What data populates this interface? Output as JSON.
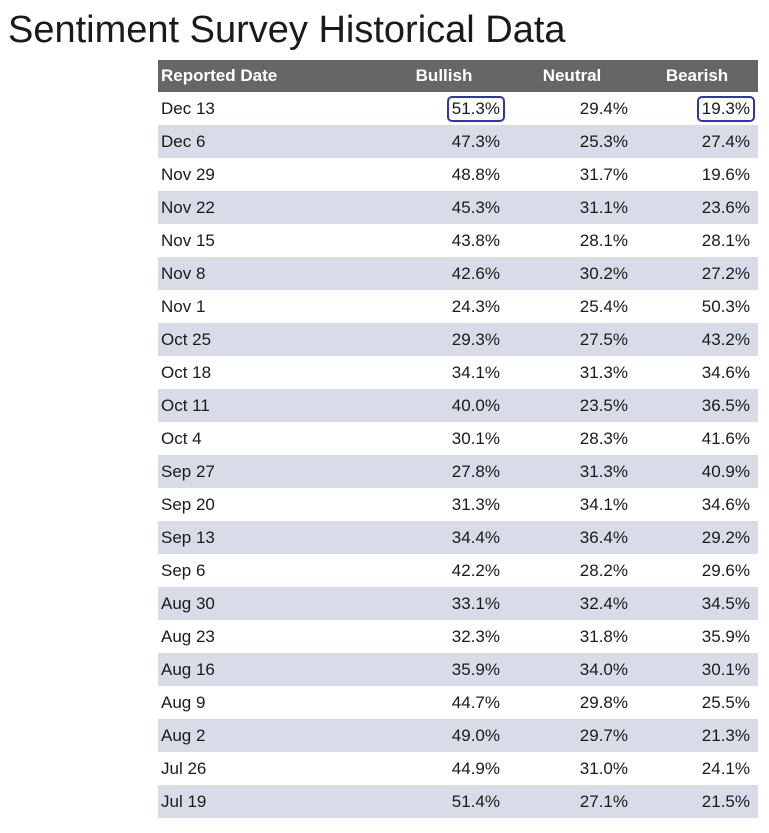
{
  "page": {
    "title": "Sentiment Survey Historical Data"
  },
  "table": {
    "headers": {
      "date": "Reported Date",
      "bullish": "Bullish",
      "neutral": "Neutral",
      "bearish": "Bearish"
    },
    "highlight_color": "#2b35b5",
    "rows": [
      {
        "date": "Dec 13",
        "bullish": "51.3%",
        "neutral": "29.4%",
        "bearish": "19.3%",
        "highlight": [
          "bullish",
          "bearish"
        ]
      },
      {
        "date": "Dec 6",
        "bullish": "47.3%",
        "neutral": "25.3%",
        "bearish": "27.4%"
      },
      {
        "date": "Nov 29",
        "bullish": "48.8%",
        "neutral": "31.7%",
        "bearish": "19.6%"
      },
      {
        "date": "Nov 22",
        "bullish": "45.3%",
        "neutral": "31.1%",
        "bearish": "23.6%"
      },
      {
        "date": "Nov 15",
        "bullish": "43.8%",
        "neutral": "28.1%",
        "bearish": "28.1%"
      },
      {
        "date": "Nov 8",
        "bullish": "42.6%",
        "neutral": "30.2%",
        "bearish": "27.2%"
      },
      {
        "date": "Nov 1",
        "bullish": "24.3%",
        "neutral": "25.4%",
        "bearish": "50.3%"
      },
      {
        "date": "Oct 25",
        "bullish": "29.3%",
        "neutral": "27.5%",
        "bearish": "43.2%"
      },
      {
        "date": "Oct 18",
        "bullish": "34.1%",
        "neutral": "31.3%",
        "bearish": "34.6%"
      },
      {
        "date": "Oct 11",
        "bullish": "40.0%",
        "neutral": "23.5%",
        "bearish": "36.5%"
      },
      {
        "date": "Oct 4",
        "bullish": "30.1%",
        "neutral": "28.3%",
        "bearish": "41.6%"
      },
      {
        "date": "Sep 27",
        "bullish": "27.8%",
        "neutral": "31.3%",
        "bearish": "40.9%"
      },
      {
        "date": "Sep 20",
        "bullish": "31.3%",
        "neutral": "34.1%",
        "bearish": "34.6%"
      },
      {
        "date": "Sep 13",
        "bullish": "34.4%",
        "neutral": "36.4%",
        "bearish": "29.2%"
      },
      {
        "date": "Sep 6",
        "bullish": "42.2%",
        "neutral": "28.2%",
        "bearish": "29.6%"
      },
      {
        "date": "Aug 30",
        "bullish": "33.1%",
        "neutral": "32.4%",
        "bearish": "34.5%"
      },
      {
        "date": "Aug 23",
        "bullish": "32.3%",
        "neutral": "31.8%",
        "bearish": "35.9%"
      },
      {
        "date": "Aug 16",
        "bullish": "35.9%",
        "neutral": "34.0%",
        "bearish": "30.1%"
      },
      {
        "date": "Aug 9",
        "bullish": "44.7%",
        "neutral": "29.8%",
        "bearish": "25.5%"
      },
      {
        "date": "Aug 2",
        "bullish": "49.0%",
        "neutral": "29.7%",
        "bearish": "21.3%"
      },
      {
        "date": "Jul 26",
        "bullish": "44.9%",
        "neutral": "31.0%",
        "bearish": "24.1%"
      },
      {
        "date": "Jul 19",
        "bullish": "51.4%",
        "neutral": "27.1%",
        "bearish": "21.5%"
      }
    ]
  }
}
